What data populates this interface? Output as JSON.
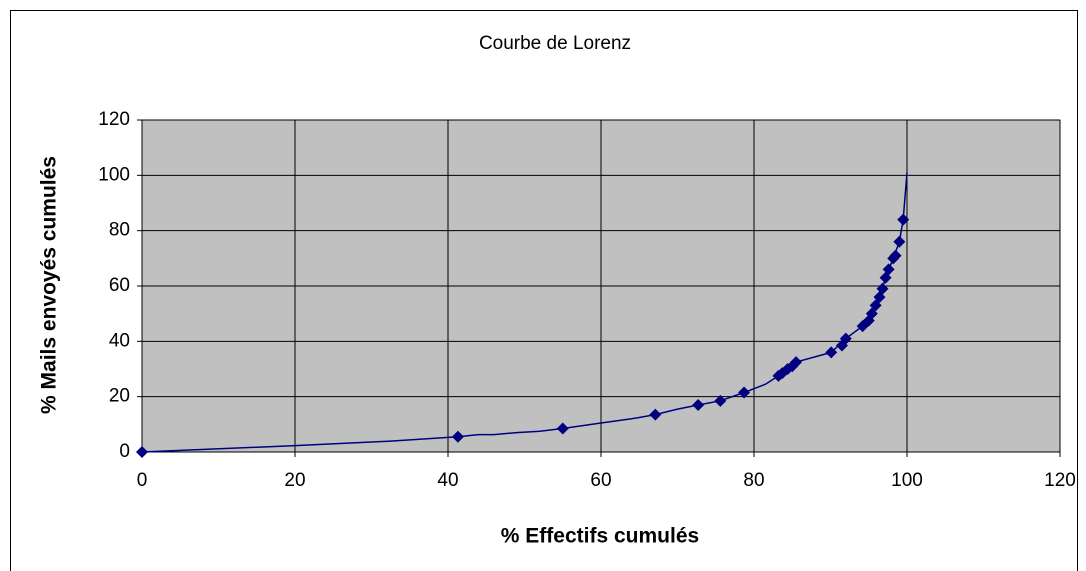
{
  "chart_data": {
    "type": "scatter",
    "title": "Courbe de Lorenz",
    "xlabel": "% Effectifs cumulés",
    "ylabel": "% Mails envoyés cumulés",
    "xlim": [
      0,
      120
    ],
    "xticks": [
      0,
      20,
      40,
      60,
      80,
      100,
      120
    ],
    "ylim": [
      0,
      120
    ],
    "yticks": [
      0,
      20,
      40,
      60,
      80,
      100,
      120
    ],
    "grid": true,
    "background": "#c0c0c0",
    "series": [
      {
        "mode": "line",
        "color": "#000080",
        "x": [
          0,
          20,
          33,
          41.3,
          44,
          46,
          49,
          52,
          55,
          60,
          64,
          67.1,
          70,
          72.7,
          75.6,
          78.7,
          81.5,
          83.2,
          85.5,
          90.1,
          92,
          94.2,
          95.4,
          96.4,
          97.2,
          98.2,
          99,
          99.5,
          100
        ],
        "values": [
          0,
          2.3,
          4,
          5.5,
          6.3,
          6.3,
          7,
          7.5,
          8.5,
          10.5,
          12,
          13.5,
          15.5,
          17,
          18.5,
          21.5,
          24.5,
          27.5,
          32.5,
          36,
          41,
          45.5,
          50,
          56,
          63,
          70,
          76,
          84,
          101
        ]
      },
      {
        "mode": "markers",
        "color": "#000080",
        "x": [
          0,
          41.3,
          55,
          67.1,
          72.7,
          75.6,
          78.7,
          83.2,
          83.7,
          84.4,
          85,
          85.5,
          90.1,
          91.5,
          92,
          94.2,
          95,
          95.4,
          95.9,
          96.4,
          96.8,
          97.2,
          97.6,
          98.2,
          98.5,
          99,
          99.5
        ],
        "values": [
          0,
          5.5,
          8.5,
          13.5,
          17,
          18.5,
          21.5,
          27.5,
          28.5,
          30,
          31,
          32.5,
          36,
          38.5,
          41,
          45.5,
          47.5,
          50,
          53,
          56,
          59,
          63,
          66,
          70,
          71,
          76,
          84
        ]
      }
    ]
  }
}
